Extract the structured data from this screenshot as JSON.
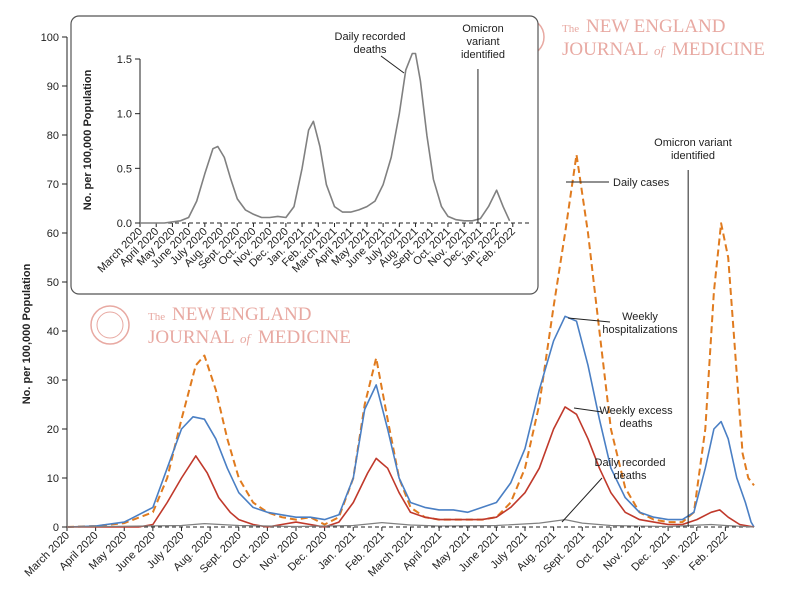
{
  "chart_data": [
    {
      "type": "line",
      "ylabel": "No. per 100,000 Population",
      "ylim": [
        0,
        100
      ],
      "yticks": [
        0,
        10,
        20,
        30,
        40,
        50,
        60,
        70,
        80,
        90,
        100
      ],
      "x_ticks": [
        "March 2020",
        "April 2020",
        "May 2020",
        "June 2020",
        "July 2020",
        "Aug. 2020",
        "Sept. 2020",
        "Oct. 2020",
        "Nov. 2020",
        "Dec. 2020",
        "Jan. 2021",
        "Feb. 2021",
        "March 2021",
        "April 2021",
        "May 2021",
        "June 2021",
        "July 2021",
        "Aug. 2021",
        "Sept. 2021",
        "Oct. 2021",
        "Nov. 2021",
        "Dec. 2021",
        "Jan. 2022",
        "Feb. 2022"
      ],
      "xlim": [
        0,
        24
      ],
      "baseline": 0,
      "series": [
        {
          "name": "Daily cases",
          "color": "#e07b1f",
          "dash": true,
          "points": [
            [
              0,
              0
            ],
            [
              1,
              0.2
            ],
            [
              2,
              0.8
            ],
            [
              3,
              3
            ],
            [
              3.5,
              10
            ],
            [
              4,
              22
            ],
            [
              4.5,
              33
            ],
            [
              4.8,
              35
            ],
            [
              5.2,
              28
            ],
            [
              5.6,
              18
            ],
            [
              6,
              10
            ],
            [
              6.5,
              5
            ],
            [
              7,
              3
            ],
            [
              7.5,
              2
            ],
            [
              8,
              1.5
            ],
            [
              8.5,
              2
            ],
            [
              9,
              0.5
            ],
            [
              9.5,
              2
            ],
            [
              10,
              10
            ],
            [
              10.4,
              25
            ],
            [
              10.8,
              34.5
            ],
            [
              11.2,
              22
            ],
            [
              11.6,
              10
            ],
            [
              12,
              4
            ],
            [
              12.5,
              2
            ],
            [
              13,
              1.5
            ],
            [
              13.5,
              1.5
            ],
            [
              14,
              1.5
            ],
            [
              14.5,
              1.5
            ],
            [
              15,
              2
            ],
            [
              15.5,
              5
            ],
            [
              16,
              12
            ],
            [
              16.5,
              25
            ],
            [
              17,
              45
            ],
            [
              17.4,
              60
            ],
            [
              17.8,
              76
            ],
            [
              18.2,
              60
            ],
            [
              18.6,
              40
            ],
            [
              19,
              20
            ],
            [
              19.5,
              8
            ],
            [
              20,
              3
            ],
            [
              20.5,
              1.5
            ],
            [
              21,
              1
            ],
            [
              21.5,
              1
            ],
            [
              21.9,
              3
            ],
            [
              22.3,
              20
            ],
            [
              22.6,
              48
            ],
            [
              22.85,
              62
            ],
            [
              23.1,
              55
            ],
            [
              23.35,
              35
            ],
            [
              23.6,
              15
            ],
            [
              23.8,
              10
            ],
            [
              24,
              8.5
            ]
          ]
        },
        {
          "name": "Weekly hospitalizations",
          "color": "#4a7fc4",
          "dash": false,
          "points": [
            [
              0,
              0
            ],
            [
              1,
              0.2
            ],
            [
              2,
              1
            ],
            [
              3,
              4
            ],
            [
              3.5,
              12
            ],
            [
              4,
              20
            ],
            [
              4.4,
              22.5
            ],
            [
              4.8,
              22
            ],
            [
              5.2,
              18
            ],
            [
              5.6,
              12
            ],
            [
              6,
              7
            ],
            [
              6.5,
              4
            ],
            [
              7,
              3
            ],
            [
              7.5,
              2.5
            ],
            [
              8,
              2
            ],
            [
              8.5,
              2
            ],
            [
              9,
              1.5
            ],
            [
              9.5,
              2.5
            ],
            [
              10,
              10
            ],
            [
              10.4,
              24
            ],
            [
              10.8,
              29
            ],
            [
              11.2,
              20
            ],
            [
              11.6,
              10
            ],
            [
              12,
              5
            ],
            [
              12.5,
              4
            ],
            [
              13,
              3.5
            ],
            [
              13.5,
              3.5
            ],
            [
              14,
              3
            ],
            [
              14.5,
              4
            ],
            [
              15,
              5
            ],
            [
              15.5,
              9
            ],
            [
              16,
              16
            ],
            [
              16.5,
              28
            ],
            [
              17,
              38
            ],
            [
              17.4,
              43
            ],
            [
              17.8,
              42
            ],
            [
              18.2,
              33
            ],
            [
              18.6,
              22
            ],
            [
              19,
              12
            ],
            [
              19.5,
              6
            ],
            [
              20,
              3
            ],
            [
              20.5,
              2
            ],
            [
              21,
              1.5
            ],
            [
              21.5,
              1.5
            ],
            [
              21.9,
              3
            ],
            [
              22.3,
              12
            ],
            [
              22.6,
              20
            ],
            [
              22.85,
              21.5
            ],
            [
              23.1,
              18
            ],
            [
              23.4,
              10
            ],
            [
              23.7,
              5
            ],
            [
              23.9,
              1
            ],
            [
              24,
              0
            ]
          ]
        },
        {
          "name": "Weekly excess deaths",
          "color": "#c0392b",
          "dash": false,
          "points": [
            [
              0,
              0
            ],
            [
              2.5,
              0
            ],
            [
              3,
              0.5
            ],
            [
              3.5,
              5
            ],
            [
              4,
              10
            ],
            [
              4.5,
              14.5
            ],
            [
              4.9,
              11
            ],
            [
              5.3,
              6
            ],
            [
              5.7,
              3
            ],
            [
              6,
              1.5
            ],
            [
              6.5,
              0.5
            ],
            [
              7,
              0
            ],
            [
              7.5,
              0.5
            ],
            [
              8,
              1
            ],
            [
              8.5,
              0.5
            ],
            [
              9,
              0
            ],
            [
              9.5,
              1
            ],
            [
              10,
              5
            ],
            [
              10.5,
              11
            ],
            [
              10.8,
              14
            ],
            [
              11.2,
              12
            ],
            [
              11.6,
              7
            ],
            [
              12,
              3
            ],
            [
              12.5,
              2
            ],
            [
              13,
              1.5
            ],
            [
              13.5,
              1.5
            ],
            [
              14,
              1.5
            ],
            [
              14.5,
              1.5
            ],
            [
              15,
              2
            ],
            [
              15.5,
              4
            ],
            [
              16,
              7
            ],
            [
              16.5,
              12
            ],
            [
              17,
              20
            ],
            [
              17.4,
              24.5
            ],
            [
              17.8,
              23
            ],
            [
              18.2,
              18
            ],
            [
              18.6,
              12
            ],
            [
              19,
              7
            ],
            [
              19.5,
              3
            ],
            [
              20,
              1.5
            ],
            [
              20.5,
              1
            ],
            [
              21,
              0.5
            ],
            [
              21.5,
              0.5
            ],
            [
              22,
              1.5
            ],
            [
              22.5,
              3
            ],
            [
              22.8,
              3.5
            ],
            [
              23.1,
              2
            ],
            [
              23.5,
              0.5
            ],
            [
              24,
              0
            ]
          ]
        },
        {
          "name": "Daily recorded deaths",
          "color": "#808080",
          "dash": false,
          "points": [
            [
              0,
              0
            ],
            [
              4,
              0.3
            ],
            [
              4.8,
              0.7
            ],
            [
              6,
              0.3
            ],
            [
              8,
              0.1
            ],
            [
              10,
              0.3
            ],
            [
              11,
              0.9
            ],
            [
              12,
              0.4
            ],
            [
              13,
              0.2
            ],
            [
              15,
              0.3
            ],
            [
              16.5,
              0.8
            ],
            [
              17.4,
              1.5
            ],
            [
              18,
              0.8
            ],
            [
              19,
              0.3
            ],
            [
              21,
              0.1
            ],
            [
              22.5,
              0.5
            ],
            [
              23,
              0.3
            ],
            [
              24,
              0
            ]
          ]
        }
      ],
      "annotations": [
        {
          "text": [
            "Omicron variant",
            "identified"
          ],
          "x": 21.7
        },
        {
          "text": [
            "Daily cases"
          ]
        },
        {
          "text": [
            "Weekly",
            "hospitalizations"
          ]
        },
        {
          "text": [
            "Weekly excess",
            "deaths"
          ]
        },
        {
          "text": [
            "Daily recorded",
            "deaths"
          ]
        }
      ]
    },
    {
      "type": "line",
      "ylabel": "No. per 100,000 Population",
      "ylim": [
        0,
        1.5
      ],
      "yticks": [
        "0.0",
        "0.5",
        "1.0",
        "1.5"
      ],
      "x_ticks": [
        "March 2020",
        "April 2020",
        "May 2020",
        "June 2020",
        "July 2020",
        "Aug. 2020",
        "Sept. 2020",
        "Oct. 2020",
        "Nov. 2020",
        "Dec. 2020",
        "Jan. 2021",
        "Feb. 2021",
        "March 2021",
        "April 2021",
        "May 2021",
        "June 2021",
        "July 2021",
        "Aug. 2021",
        "Sept. 2021",
        "Oct. 2021",
        "Nov. 2021",
        "Dec. 2021",
        "Jan. 2022",
        "Feb. 2022"
      ],
      "xlim": [
        0,
        24
      ],
      "baseline": 0,
      "series": [
        {
          "name": "Daily recorded deaths",
          "color": "#808080",
          "dash": false,
          "points": [
            [
              0,
              0
            ],
            [
              1.5,
              0
            ],
            [
              2.5,
              0.02
            ],
            [
              3,
              0.05
            ],
            [
              3.5,
              0.2
            ],
            [
              4,
              0.45
            ],
            [
              4.5,
              0.68
            ],
            [
              4.8,
              0.7
            ],
            [
              5.2,
              0.6
            ],
            [
              5.6,
              0.4
            ],
            [
              6,
              0.22
            ],
            [
              6.5,
              0.12
            ],
            [
              7,
              0.08
            ],
            [
              7.5,
              0.05
            ],
            [
              8,
              0.05
            ],
            [
              8.5,
              0.06
            ],
            [
              9,
              0.05
            ],
            [
              9.5,
              0.15
            ],
            [
              10,
              0.5
            ],
            [
              10.4,
              0.85
            ],
            [
              10.7,
              0.93
            ],
            [
              11.1,
              0.7
            ],
            [
              11.5,
              0.35
            ],
            [
              12,
              0.15
            ],
            [
              12.5,
              0.1
            ],
            [
              13,
              0.1
            ],
            [
              13.5,
              0.12
            ],
            [
              14,
              0.15
            ],
            [
              14.5,
              0.2
            ],
            [
              15,
              0.35
            ],
            [
              15.5,
              0.6
            ],
            [
              16,
              1.0
            ],
            [
              16.4,
              1.4
            ],
            [
              16.8,
              1.55
            ],
            [
              17,
              1.55
            ],
            [
              17.3,
              1.3
            ],
            [
              17.7,
              0.8
            ],
            [
              18.1,
              0.4
            ],
            [
              18.6,
              0.15
            ],
            [
              19,
              0.06
            ],
            [
              19.5,
              0.03
            ],
            [
              20,
              0.02
            ],
            [
              20.5,
              0.02
            ],
            [
              21,
              0.04
            ],
            [
              21.5,
              0.15
            ],
            [
              22,
              0.3
            ],
            [
              22.4,
              0.15
            ],
            [
              22.8,
              0.02
            ]
          ]
        }
      ],
      "annotations": [
        {
          "text": [
            "Daily recorded",
            "deaths"
          ]
        },
        {
          "text": [
            "Omicron",
            "variant",
            "identified"
          ],
          "x": 20.85
        }
      ]
    }
  ],
  "watermark": {
    "line1_small": "The",
    "line1": "NEW ENGLAND",
    "line2": "JOURNAL",
    "line2_small": "of",
    "line2_end": "MEDICINE"
  }
}
